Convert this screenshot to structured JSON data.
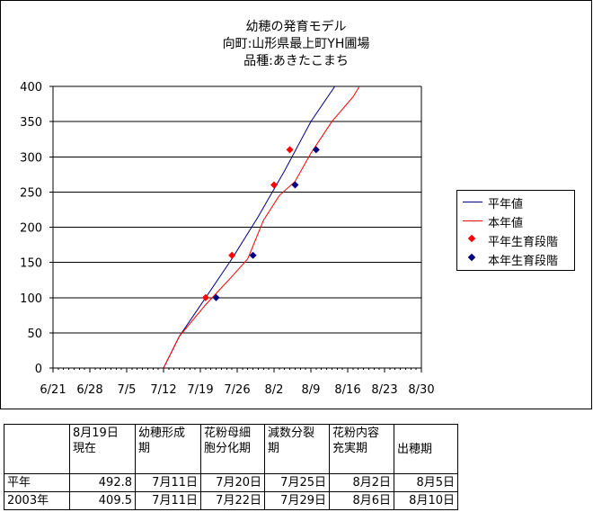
{
  "title": [
    "幼穂の発育モデル",
    "向町:山形県最上町YH圃場",
    "品種:あきたこまち"
  ],
  "colors": {
    "heinen": "#000080",
    "honnen": "#ff0000",
    "heinen_stage": "#ff0000",
    "honnen_stage": "#000080"
  },
  "chart_data": {
    "type": "line",
    "title": "幼穂の発育モデル 向町:山形県最上町YH圃場 品種:あきたこまち",
    "xlabel": "",
    "ylabel": "",
    "x_ticks": [
      "6/21",
      "6/28",
      "7/5",
      "7/12",
      "7/19",
      "7/26",
      "8/2",
      "8/9",
      "8/16",
      "8/23",
      "8/30"
    ],
    "x_range": [
      "6/21",
      "8/30"
    ],
    "ylim": [
      0,
      400
    ],
    "y_ticks": [
      0,
      50,
      100,
      150,
      200,
      250,
      300,
      350,
      400
    ],
    "grid": "horizontal",
    "legend_position": "right",
    "series": [
      {
        "name": "平年値",
        "kind": "line",
        "color": "#000080",
        "points": [
          [
            "7/12",
            0
          ],
          [
            "7/15",
            45
          ],
          [
            "7/20",
            100
          ],
          [
            "7/25",
            155
          ],
          [
            "7/30",
            215
          ],
          [
            "8/4",
            280
          ],
          [
            "8/9",
            350
          ],
          [
            "8/14",
            405
          ]
        ]
      },
      {
        "name": "本年値",
        "kind": "line",
        "color": "#ff0000",
        "points": [
          [
            "7/12",
            0
          ],
          [
            "7/15",
            45
          ],
          [
            "7/20",
            90
          ],
          [
            "7/25",
            130
          ],
          [
            "7/28",
            155
          ],
          [
            "7/31",
            210
          ],
          [
            "8/3",
            245
          ],
          [
            "8/6",
            265
          ],
          [
            "8/9",
            305
          ],
          [
            "8/13",
            350
          ],
          [
            "8/17",
            385
          ],
          [
            "8/19",
            409.5
          ]
        ]
      },
      {
        "name": "平年生育段階",
        "kind": "marker",
        "color": "#ff0000",
        "points": [
          [
            "7/20",
            100
          ],
          [
            "7/25",
            160
          ],
          [
            "8/2",
            260
          ],
          [
            "8/5",
            310
          ]
        ]
      },
      {
        "name": "本年生育段階",
        "kind": "marker",
        "color": "#000080",
        "points": [
          [
            "7/22",
            100
          ],
          [
            "7/29",
            160
          ],
          [
            "8/6",
            260
          ],
          [
            "8/10",
            310
          ]
        ]
      }
    ]
  },
  "table": {
    "headers": [
      "",
      "8月19日\n現在",
      "幼穂形成\n期",
      "花粉母細\n胞分化期",
      "減数分裂\n期",
      "花粉内容\n充実期",
      "出穂期"
    ],
    "rows": [
      [
        "平年",
        "492.8",
        "7月11日",
        "7月20日",
        "7月25日",
        "8月2日",
        "8月5日"
      ],
      [
        "2003年",
        "409.5",
        "7月11日",
        "7月22日",
        "7月29日",
        "8月6日",
        "8月10日"
      ]
    ]
  }
}
